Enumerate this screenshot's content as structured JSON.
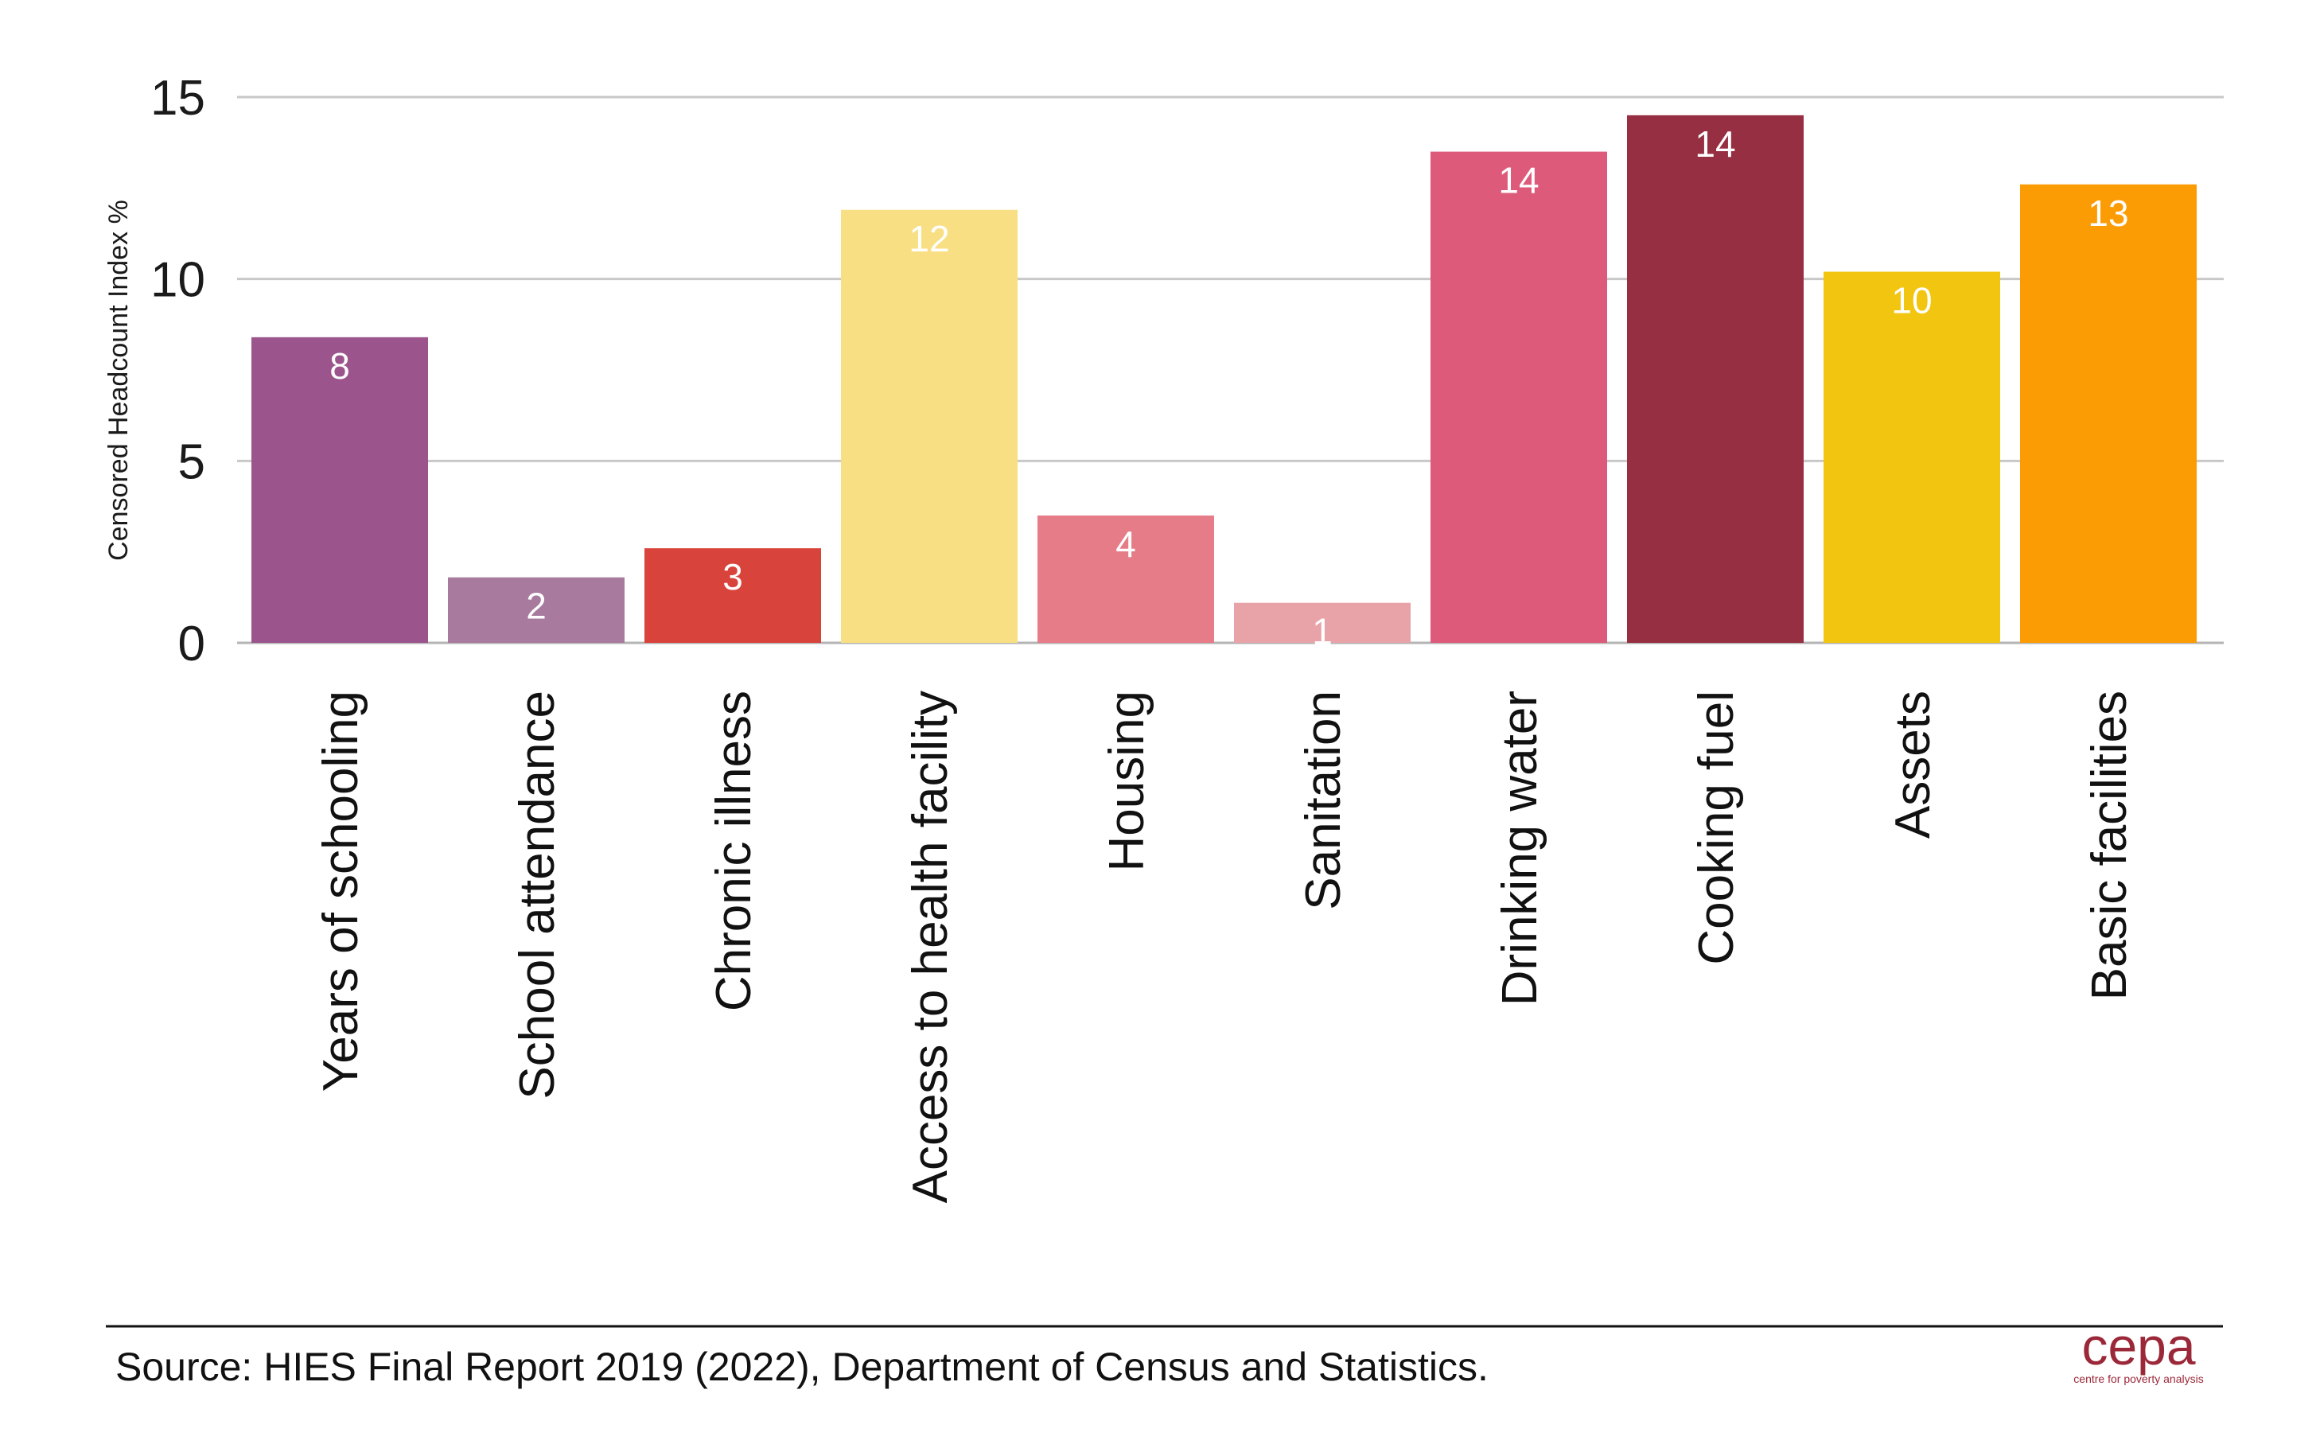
{
  "chart_data": {
    "type": "bar",
    "categories": [
      "Years of schooling",
      "School attendance",
      "Chronic illness",
      "Access to health facility",
      "Housing",
      "Sanitation",
      "Drinking water",
      "Cooking fuel",
      "Assets",
      "Basic facilities"
    ],
    "values": [
      8.4,
      1.8,
      2.6,
      11.9,
      3.5,
      1.1,
      13.5,
      14.5,
      10.2,
      12.6
    ],
    "data_labels": [
      "8",
      "2",
      "3",
      "12",
      "4",
      "1",
      "14",
      "14",
      "10",
      "13"
    ],
    "colors": [
      "#9c558c",
      "#a87a9e",
      "#d8433c",
      "#f8df83",
      "#e57c88",
      "#e8a3a8",
      "#de5a7a",
      "#962f41",
      "#f2c511",
      "#fc9c05"
    ],
    "title": "",
    "xlabel": "",
    "ylabel": "Censored Headcount Index %",
    "ylim": [
      0,
      15
    ],
    "yticks": [
      0,
      5,
      10,
      15
    ],
    "grid": true,
    "legend": "none"
  },
  "source": "Source: HIES Final Report 2019 (2022), Department of Census and Statistics.",
  "logo": {
    "name": "cepa",
    "tagline": "centre for poverty analysis",
    "color": "#9b2838"
  }
}
